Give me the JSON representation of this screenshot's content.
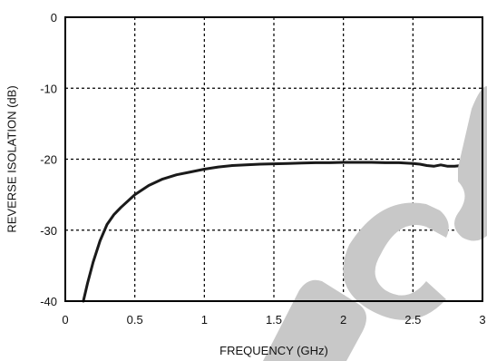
{
  "chart_data": {
    "type": "line",
    "xlabel": "FREQUENCY (GHz)",
    "ylabel": "REVERSE ISOLATION (dB)",
    "xlim": [
      0,
      3
    ],
    "ylim": [
      -40,
      0
    ],
    "xticks": [
      0,
      0.5,
      1,
      1.5,
      2,
      2.5,
      3
    ],
    "xtick_labels": [
      "0",
      "0.5",
      "1",
      "1.5",
      "2",
      "2.5",
      "3"
    ],
    "yticks": [
      0,
      -10,
      -20,
      -30,
      -40
    ],
    "ytick_labels": [
      "0",
      "-10",
      "-20",
      "-30",
      "-40"
    ],
    "grid": true,
    "series": [
      {
        "x": [
          0.13,
          0.16,
          0.2,
          0.25,
          0.3,
          0.35,
          0.4,
          0.5,
          0.6,
          0.7,
          0.8,
          0.9,
          1.0,
          1.1,
          1.2,
          1.3,
          1.4,
          1.5,
          1.6,
          1.7,
          1.8,
          1.9,
          2.0,
          2.1,
          2.2,
          2.3,
          2.4,
          2.5,
          2.55,
          2.6,
          2.65,
          2.7,
          2.75,
          2.8,
          2.85,
          2.9,
          2.95,
          3.0
        ],
        "y": [
          -40,
          -37.5,
          -34.5,
          -31.5,
          -29.2,
          -27.8,
          -26.8,
          -25.0,
          -23.7,
          -22.8,
          -22.2,
          -21.8,
          -21.4,
          -21.1,
          -20.9,
          -20.8,
          -20.7,
          -20.65,
          -20.6,
          -20.55,
          -20.5,
          -20.5,
          -20.45,
          -20.45,
          -20.45,
          -20.5,
          -20.5,
          -20.6,
          -20.7,
          -20.9,
          -21.0,
          -20.8,
          -21.0,
          -21.0,
          -20.9,
          -21.2,
          -21.5,
          -21.4
        ]
      }
    ]
  }
}
